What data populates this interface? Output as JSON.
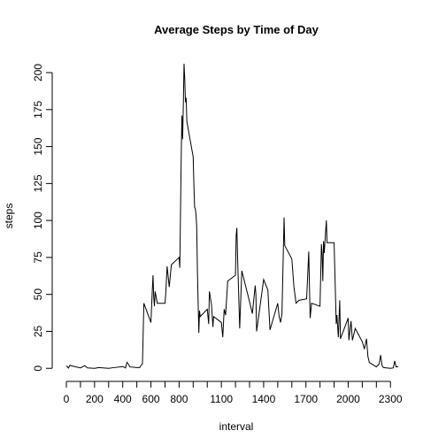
{
  "chart_data": {
    "type": "line",
    "title": "Average Steps by Time of Day",
    "xlabel": "interval",
    "ylabel": "steps",
    "x": [
      0,
      15,
      25,
      45,
      100,
      130,
      150,
      200,
      230,
      300,
      330,
      400,
      420,
      430,
      440,
      450,
      500,
      520,
      530,
      540,
      550,
      600,
      610,
      615,
      620,
      625,
      630,
      645,
      700,
      705,
      715,
      730,
      745,
      800,
      805,
      815,
      820,
      825,
      830,
      835,
      840,
      845,
      850,
      855,
      900,
      905,
      910,
      915,
      920,
      925,
      930,
      935,
      940,
      945,
      950,
      1000,
      1010,
      1015,
      1030,
      1040,
      1045,
      1100,
      1110,
      1120,
      1130,
      1145,
      1200,
      1205,
      1210,
      1215,
      1230,
      1245,
      1300,
      1320,
      1340,
      1345,
      1350,
      1400,
      1430,
      1445,
      1500,
      1510,
      1520,
      1530,
      1545,
      1550,
      1600,
      1615,
      1630,
      1650,
      1705,
      1715,
      1720,
      1730,
      1740,
      1800,
      1810,
      1815,
      1820,
      1825,
      1830,
      1845,
      1850,
      1900,
      1915,
      1920,
      1930,
      1940,
      1945,
      2000,
      2005,
      2020,
      2030,
      2050,
      2100,
      2115,
      2130,
      2140,
      2150,
      2200,
      2220,
      2230,
      2240,
      2250,
      2300,
      2320,
      2330,
      2340,
      2355
    ],
    "series": [
      {
        "name": "steps",
        "color": "#000000",
        "values": [
          1.7,
          0.2,
          2.1,
          1.5,
          0.3,
          1.8,
          0.3,
          0,
          0.5,
          0,
          0.4,
          1.2,
          0.3,
          4.1,
          3,
          1,
          0.5,
          0.5,
          2,
          3,
          44,
          31,
          53,
          63,
          48,
          42,
          52,
          44,
          44,
          50,
          69,
          55,
          70,
          75,
          68,
          143,
          171,
          155,
          178,
          206,
          196,
          180,
          183,
          167,
          143,
          124,
          109,
          108,
          104,
          96,
          66,
          45,
          24,
          39,
          35,
          40,
          30,
          52,
          43,
          28,
          35,
          31,
          21,
          40,
          36,
          59,
          63,
          90,
          95,
          75,
          27,
          66,
          45,
          37,
          56,
          50,
          25,
          60,
          53,
          26,
          44,
          35,
          31,
          37,
          102,
          83,
          74,
          55,
          44,
          46,
          47,
          68,
          79,
          34,
          44,
          42,
          84,
          77,
          59,
          86,
          78,
          100,
          85,
          85,
          30,
          36,
          21,
          46,
          20,
          34,
          19,
          32,
          19,
          27,
          18,
          13,
          20,
          8,
          4,
          1,
          3,
          9,
          2,
          0.5,
          0,
          0.3,
          5,
          1,
          1.1
        ]
      }
    ],
    "xlim": [
      -94.2,
      2449.2
    ],
    "ylim": [
      -8.24,
      214.4
    ],
    "xticks": [
      0,
      200,
      400,
      600,
      800,
      1100,
      1400,
      1700,
      2000,
      2300
    ],
    "xtick_marks": [
      0,
      100,
      200,
      300,
      400,
      500,
      600,
      700,
      800,
      900,
      1000,
      1100,
      1200,
      1300,
      1400,
      1500,
      1600,
      1700,
      1800,
      1900,
      2000,
      2100,
      2200,
      2300
    ],
    "yticks": [
      0,
      25,
      50,
      75,
      100,
      125,
      150,
      175,
      200
    ]
  }
}
